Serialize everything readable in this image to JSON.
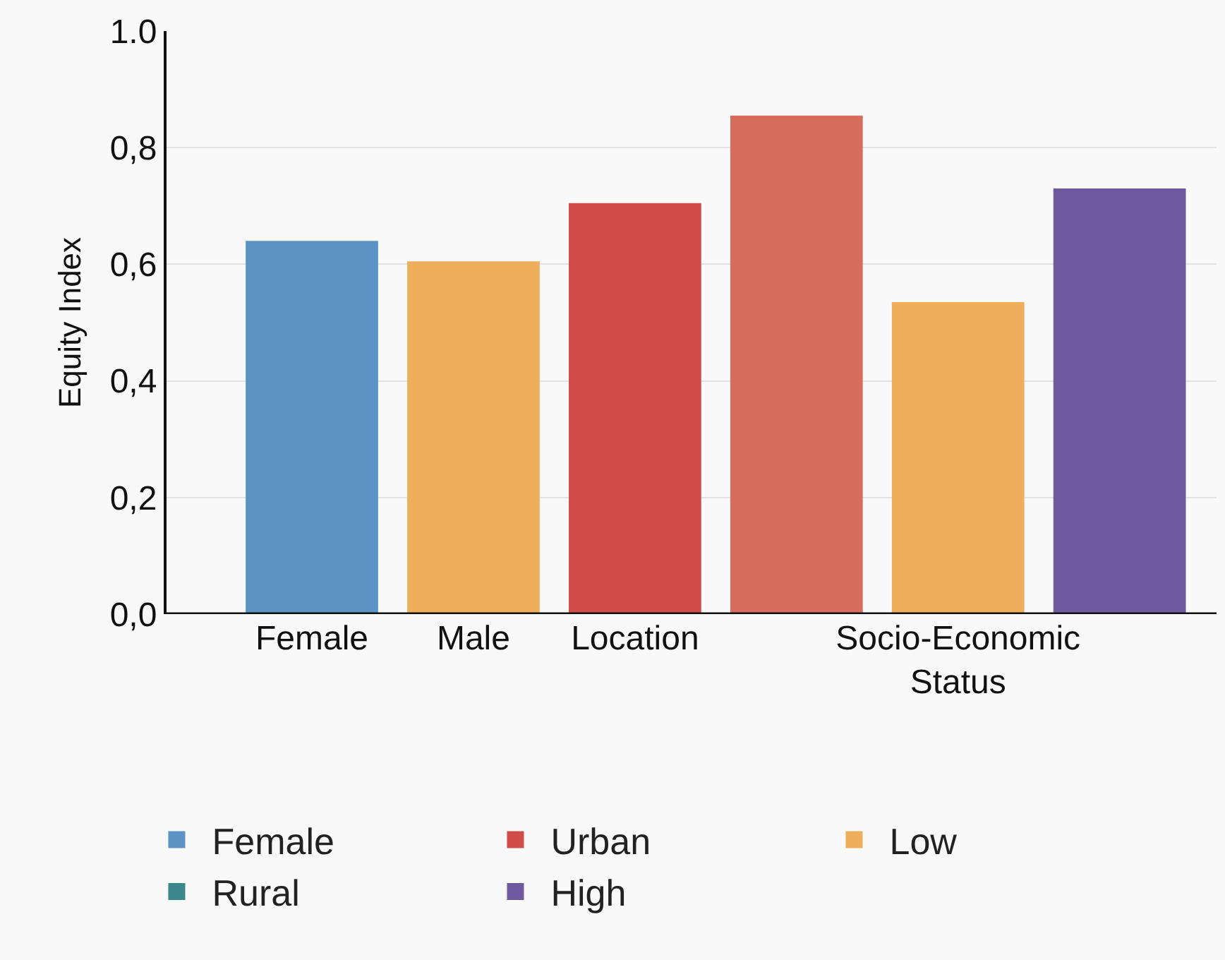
{
  "chart_data": {
    "type": "bar",
    "ylabel": "Equity Index",
    "categories": [
      "Female",
      "Male",
      "Location",
      null,
      "Socio-Economic Status",
      null
    ],
    "series": [
      {
        "name": "Female",
        "color": "#5b93c4",
        "values": [
          0.64,
          null,
          null,
          null,
          null,
          null
        ]
      },
      {
        "name": "Urban",
        "color": "#cf4c48",
        "colors": [
          null,
          null,
          "#cf4c48",
          "#d86c5c",
          null,
          null
        ],
        "values": [
          null,
          null,
          0.705,
          0.855,
          null,
          null
        ]
      },
      {
        "name": "Low",
        "color": "#eeae5c",
        "values": [
          null,
          0.605,
          null,
          null,
          0.535,
          null
        ]
      },
      {
        "name": "Rural",
        "color": "#3b878b",
        "values": [
          null,
          null,
          null,
          null,
          null,
          null
        ]
      },
      {
        "name": "High",
        "color": "#6f5a9f",
        "values": [
          null,
          null,
          null,
          null,
          null,
          0.73
        ]
      }
    ],
    "ylim": [
      0,
      1
    ],
    "yticks": [
      {
        "value": 0,
        "label": "0,0"
      },
      {
        "value": 0.2,
        "label": "0,2"
      },
      {
        "value": 0.4,
        "label": "0,4"
      },
      {
        "value": 0.6,
        "label": "0,6"
      },
      {
        "value": 0.8,
        "label": "0,8"
      },
      {
        "value": 1,
        "label": "1.0"
      }
    ],
    "grid": "y",
    "legend": "bottom"
  }
}
